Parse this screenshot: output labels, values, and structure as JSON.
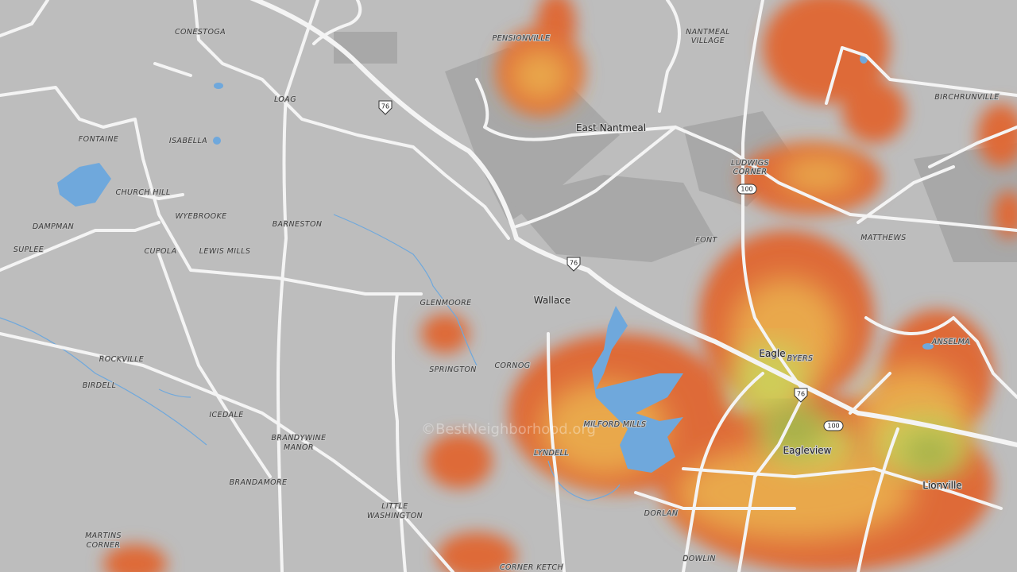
{
  "places": [
    "CONESTOGA",
    "PENSIONVILLE",
    [
      "NANTMEAL",
      "VILLAGE"
    ],
    "LOAG",
    "East Nantmeal",
    "BIRCHRUNVILLE",
    "FONTAINE",
    "ISABELLA",
    [
      "LUDWIGS",
      "CORNER"
    ],
    "CHURCH HILL",
    "WYEBROOKE",
    "BARNESTON",
    "DAMPMAN",
    "FONT",
    "MATTHEWS",
    "SUPLEE",
    "CUPOLA",
    "LEWIS MILLS",
    "Wallace",
    "GLENMOORE",
    "Eagle",
    "BYERS",
    "ANSELMA",
    "ROCKVILLE",
    "SPRINGTON",
    "CORNOG",
    "BIRDELL",
    "ICEDALE",
    "MILFORD MILLS",
    [
      "BRANDYWINE",
      "MANOR"
    ],
    "Eagleview",
    "LYNDELL",
    "BRANDAMORE",
    "Lionville",
    [
      "LITTLE",
      "WASHINGTON"
    ],
    "DORLAN",
    [
      "MARTINS",
      "CORNER"
    ],
    "DOWLIN",
    "CORNER KETCH"
  ],
  "shields": [
    "76",
    "76",
    "100",
    "76",
    "100"
  ],
  "watermark": "©BestNeighborhood.org"
}
